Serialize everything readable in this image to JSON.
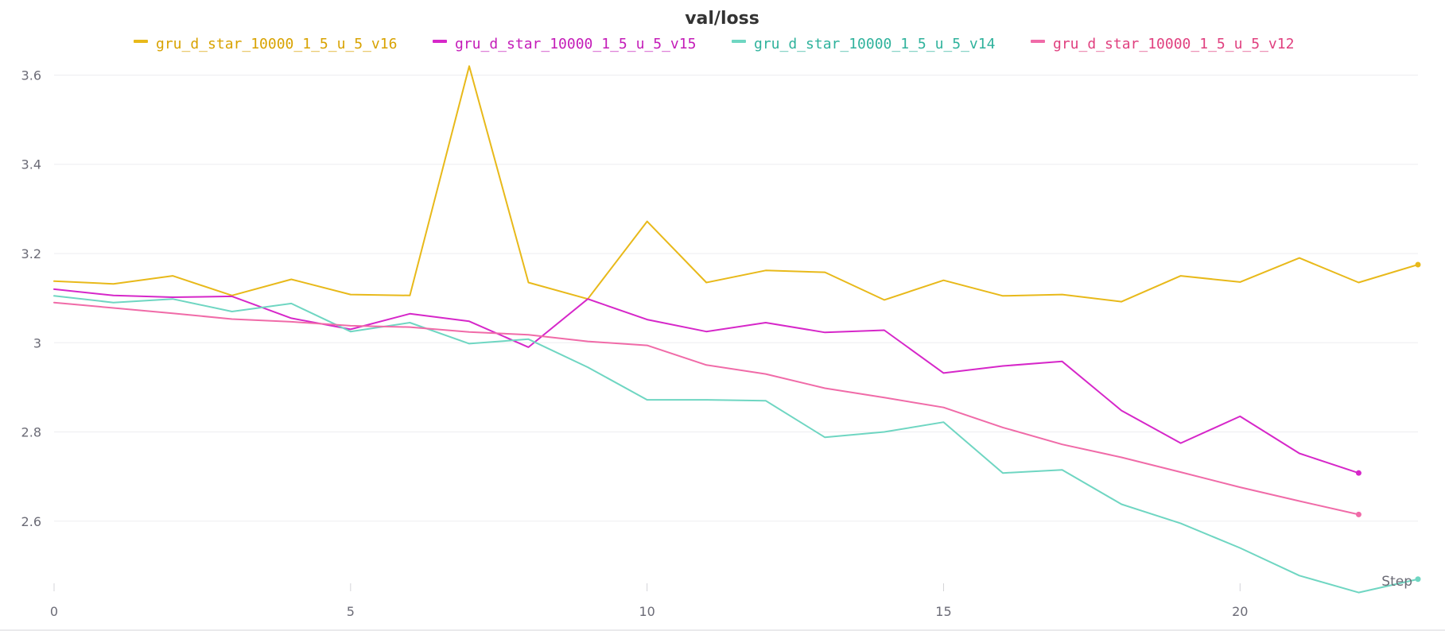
{
  "chart_data": {
    "type": "line",
    "title": "val/loss",
    "xlabel": "Step",
    "ylabel": "",
    "xlim": [
      0,
      23
    ],
    "ylim": [
      2.45,
      3.64
    ],
    "xticks": [
      0,
      5,
      10,
      15,
      20
    ],
    "xtick_labels": [
      "0",
      "5",
      "10",
      "15",
      "20"
    ],
    "yticks": [
      2.6,
      2.8,
      3.0,
      3.2,
      3.4,
      3.6
    ],
    "ytick_labels": [
      "2.6",
      "2.8",
      "3",
      "3.2",
      "3.4",
      "3.6"
    ],
    "grid": true,
    "legend_position": "top",
    "series": [
      {
        "name": "gru_d_star_10000_1_5_u_5_v16",
        "color": "#e8b91a",
        "text_color": "#d8a200",
        "x": [
          0,
          1,
          2,
          3,
          4,
          5,
          6,
          7,
          8,
          9,
          10,
          11,
          12,
          13,
          14,
          15,
          16,
          17,
          18,
          19,
          20,
          21,
          22,
          23
        ],
        "values": [
          3.138,
          3.132,
          3.15,
          3.106,
          3.142,
          3.108,
          3.106,
          3.62,
          3.135,
          3.098,
          3.272,
          3.135,
          3.162,
          3.158,
          3.096,
          3.14,
          3.105,
          3.108,
          3.092,
          3.15,
          3.136,
          3.19,
          3.135,
          3.175
        ]
      },
      {
        "name": "gru_d_star_10000_1_5_u_5_v15",
        "color": "#d627c9",
        "text_color": "#c41cb8",
        "x": [
          0,
          1,
          2,
          3,
          4,
          5,
          6,
          7,
          8,
          9,
          10,
          11,
          12,
          13,
          14,
          15,
          16,
          17,
          18,
          19,
          20,
          21,
          22
        ],
        "values": [
          3.12,
          3.106,
          3.102,
          3.104,
          3.055,
          3.03,
          3.065,
          3.048,
          2.99,
          3.098,
          3.052,
          3.025,
          3.045,
          3.023,
          3.028,
          2.932,
          2.948,
          2.958,
          2.848,
          2.775,
          2.835,
          2.752,
          2.708
        ]
      },
      {
        "name": "gru_d_star_10000_1_5_u_5_v14",
        "color": "#6fd6c2",
        "text_color": "#2fb29c",
        "x": [
          0,
          1,
          2,
          3,
          4,
          5,
          6,
          7,
          8,
          9,
          10,
          11,
          12,
          13,
          14,
          15,
          16,
          17,
          18,
          19,
          20,
          21,
          22,
          23
        ],
        "values": [
          3.105,
          3.09,
          3.098,
          3.07,
          3.088,
          3.025,
          3.045,
          2.998,
          3.008,
          2.945,
          2.872,
          2.872,
          2.87,
          2.788,
          2.8,
          2.822,
          2.708,
          2.715,
          2.638,
          2.595,
          2.54,
          2.478,
          2.44,
          2.47
        ]
      },
      {
        "name": "gru_d_star_10000_1_5_u_5_v12",
        "color": "#f06ba8",
        "text_color": "#e0407f",
        "x": [
          0,
          1,
          2,
          3,
          4,
          5,
          6,
          7,
          8,
          9,
          10,
          11,
          12,
          13,
          14,
          15,
          16,
          17,
          18,
          19,
          20,
          21,
          22
        ],
        "values": [
          3.09,
          3.078,
          3.066,
          3.053,
          3.047,
          3.038,
          3.035,
          3.024,
          3.018,
          3.003,
          2.994,
          2.95,
          2.93,
          2.898,
          2.877,
          2.855,
          2.81,
          2.772,
          2.743,
          2.71,
          2.676,
          2.645,
          2.615
        ]
      }
    ]
  }
}
